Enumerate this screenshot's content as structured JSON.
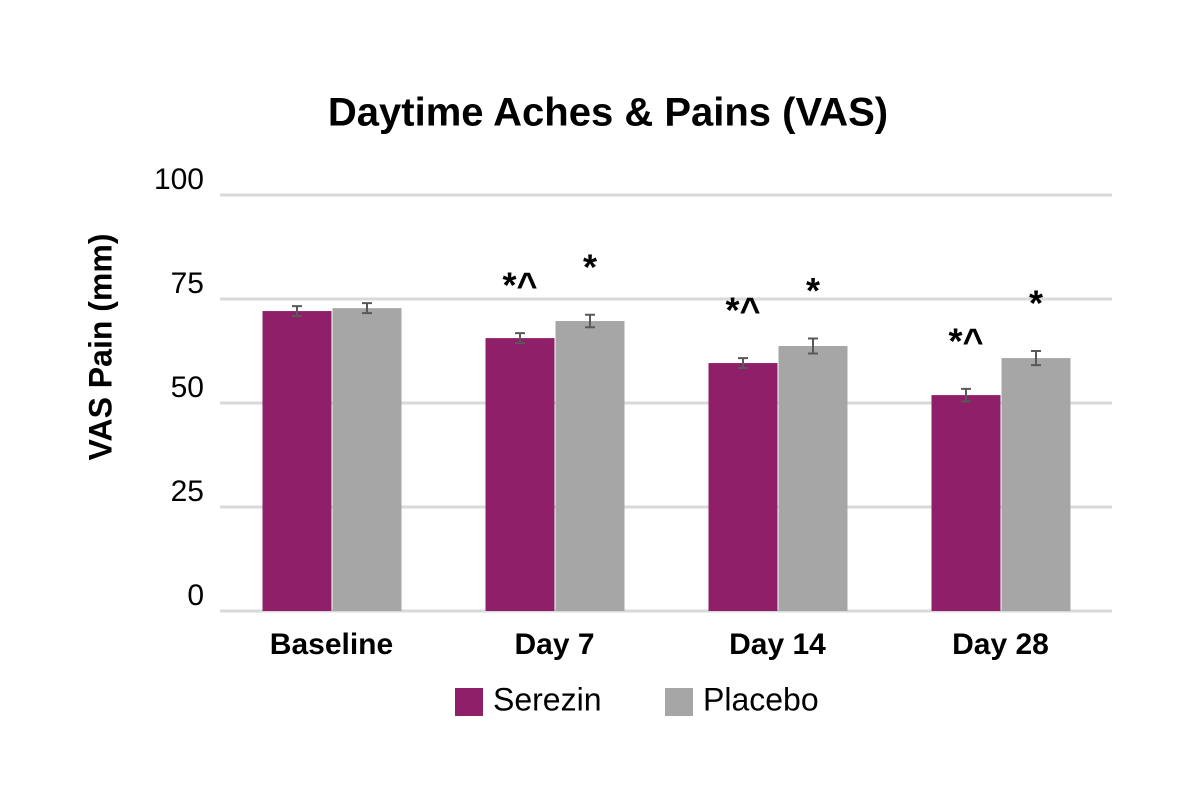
{
  "chart_data": {
    "type": "bar",
    "title": "Daytime Aches & Pains (VAS)",
    "y_label": "VAS Pain (mm)",
    "categories": [
      "Baseline",
      "Day 7",
      "Day 14",
      "Day 28"
    ],
    "series": [
      {
        "name": "Serezin",
        "color": "#8e1f68",
        "values": [
          72.1,
          65.6,
          59.6,
          51.9
        ],
        "errors": [
          1.2,
          1.2,
          1.2,
          1.5
        ],
        "annotations": [
          null,
          "*^",
          "*^",
          "*^"
        ]
      },
      {
        "name": "Placebo",
        "color": "#a6a6a6",
        "values": [
          72.8,
          69.7,
          63.7,
          60.8
        ],
        "errors": [
          1.2,
          1.5,
          1.8,
          1.7
        ],
        "annotations": [
          null,
          "*",
          "*",
          "*"
        ]
      }
    ],
    "ylim": [
      0,
      100
    ],
    "yticks": [
      0,
      25,
      50,
      75,
      100
    ],
    "grid": true,
    "legend": "bottom"
  }
}
